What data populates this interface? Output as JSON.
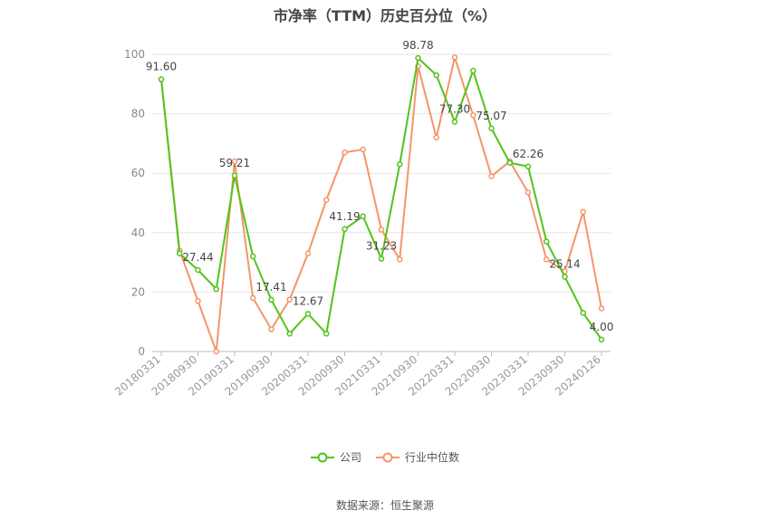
{
  "chart_data": {
    "type": "line",
    "title": "市净率（TTM）历史百分位（%）",
    "xlabel": "",
    "ylabel": "",
    "ylim": [
      0,
      100
    ],
    "yticks": [
      0,
      20,
      40,
      60,
      80,
      100
    ],
    "x": [
      "20180331",
      "",
      "20180930",
      "",
      "20190331",
      "",
      "20190930",
      "",
      "20200331",
      "",
      "20200930",
      "",
      "20210331",
      "",
      "20210930",
      "",
      "20220331",
      "",
      "20220930",
      "",
      "20230331",
      "",
      "20230930",
      "",
      "20240126"
    ],
    "x_tick_labels": [
      "20180331",
      "20180930",
      "20190331",
      "20190930",
      "20200331",
      "20200930",
      "20210331",
      "20210930",
      "20220331",
      "20220930",
      "20230331",
      "20230930",
      "20240126"
    ],
    "series": [
      {
        "name": "公司",
        "color": "#52c41a",
        "values": [
          91.6,
          33.0,
          27.44,
          21.0,
          59.21,
          32.0,
          17.41,
          6.0,
          12.67,
          6.0,
          41.19,
          45.5,
          31.23,
          63.0,
          98.78,
          93.0,
          77.3,
          94.5,
          75.07,
          63.5,
          62.26,
          37.0,
          25.14,
          13.0,
          4.0
        ],
        "labels": {
          "0": "91.60",
          "2": "27.44",
          "4": "59.21",
          "6": "17.41",
          "8": "12.67",
          "10": "41.19",
          "12": "31.23",
          "14": "98.78",
          "16": "77.30",
          "18": "75.07",
          "20": "62.26",
          "22": "25.14",
          "24": "4.00"
        }
      },
      {
        "name": "行业中位数",
        "color": "#f4956b",
        "values": [
          91.6,
          34.0,
          17.0,
          0.0,
          64.0,
          18.0,
          7.5,
          17.5,
          33.0,
          51.0,
          67.0,
          68.0,
          41.0,
          31.0,
          96.0,
          72.0,
          99.0,
          79.5,
          59.0,
          64.0,
          53.5,
          31.0,
          27.0,
          47.0,
          14.5
        ]
      }
    ],
    "legend": {
      "position": "bottom"
    },
    "grid": true
  },
  "source_text": "数据来源：恒生聚源"
}
